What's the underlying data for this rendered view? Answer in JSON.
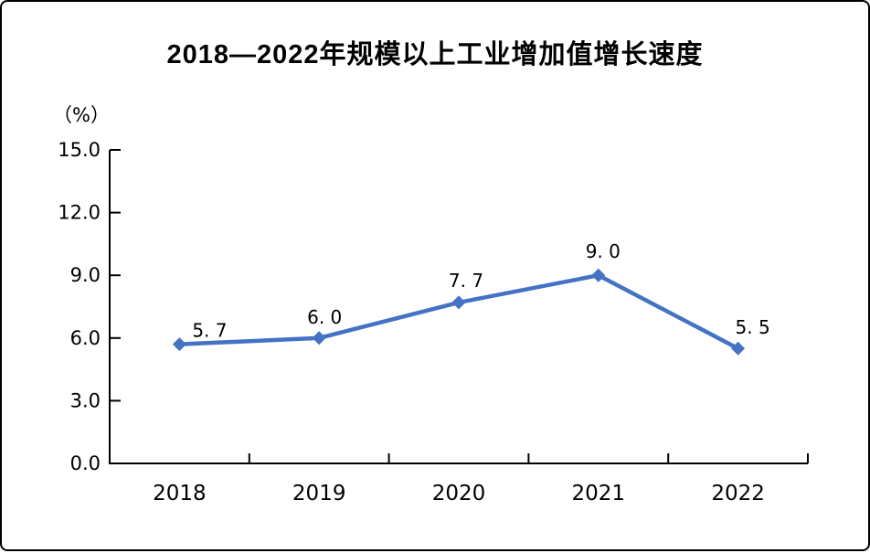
{
  "chart_data": {
    "type": "line",
    "title": "2018—2022年规模以上工业增加值增长速度",
    "ylabel": "（%）",
    "xlabel": "",
    "categories": [
      "2018",
      "2019",
      "2020",
      "2021",
      "2022"
    ],
    "series": [
      {
        "name": "规模以上工业增加值增长速度",
        "values": [
          5.7,
          6.0,
          7.7,
          9.0,
          5.5
        ],
        "point_labels": [
          "5. 7",
          "6. 0",
          "7. 7",
          "9. 0",
          "5. 5"
        ],
        "color": "#4472C4",
        "marker": "diamond"
      }
    ],
    "ylim": [
      0,
      15
    ],
    "ytick_step": 3,
    "ytick_labels": [
      "0.0",
      "3.0",
      "6.0",
      "9.0",
      "12.0",
      "15.0"
    ],
    "grid": false,
    "legend": "none",
    "axis_color": "#000000",
    "background": "#ffffff"
  }
}
